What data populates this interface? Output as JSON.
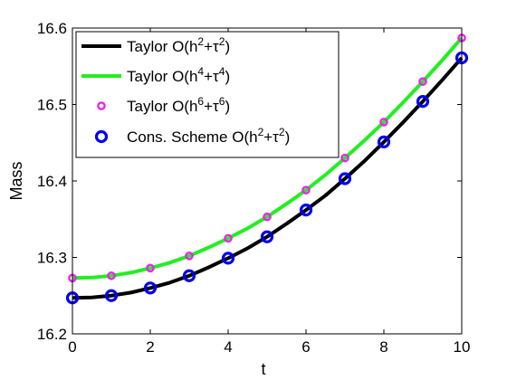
{
  "chart_data": {
    "type": "line",
    "xlabel": "t",
    "ylabel": "Mass",
    "xlim": [
      0,
      10
    ],
    "ylim": [
      16.2,
      16.6
    ],
    "xticks": [
      "0",
      "2",
      "4",
      "6",
      "8",
      "10"
    ],
    "yticks": [
      "16.2",
      "16.3",
      "16.4",
      "16.5",
      "16.6"
    ],
    "grid": false,
    "legend_position": "top-left",
    "series": [
      {
        "name": "Taylor O(h2+τ2)",
        "label_parts": {
          "prefix": "Taylor O(h",
          "sup1": "2",
          "mid": "+τ",
          "sup2": "2",
          "suffix": ")"
        },
        "style": "line",
        "color": "#000000",
        "x": [
          0,
          0.5,
          1,
          1.5,
          2,
          2.5,
          3,
          3.5,
          4,
          4.5,
          5,
          5.5,
          6,
          6.5,
          7,
          7.5,
          8,
          8.5,
          9,
          9.5,
          10
        ],
        "values": [
          16.247,
          16.2476,
          16.25,
          16.254,
          16.26,
          16.267,
          16.276,
          16.287,
          16.299,
          16.312,
          16.327,
          16.344,
          16.362,
          16.381,
          16.403,
          16.426,
          16.451,
          16.477,
          16.504,
          16.532,
          16.561
        ]
      },
      {
        "name": "Taylor O(h4+τ4)",
        "label_parts": {
          "prefix": "Taylor O(h",
          "sup1": "4",
          "mid": "+τ",
          "sup2": "4",
          "suffix": ")"
        },
        "style": "line",
        "color": "#22ee22",
        "x": [
          0,
          0.5,
          1,
          1.5,
          2,
          2.5,
          3,
          3.5,
          4,
          4.5,
          5,
          5.5,
          6,
          6.5,
          7,
          7.5,
          8,
          8.5,
          9,
          9.5,
          10
        ],
        "values": [
          16.273,
          16.2736,
          16.276,
          16.28,
          16.286,
          16.293,
          16.302,
          16.313,
          16.325,
          16.338,
          16.353,
          16.37,
          16.388,
          16.408,
          16.43,
          16.453,
          16.477,
          16.503,
          16.53,
          16.558,
          16.587
        ]
      },
      {
        "name": "Taylor O(h6+τ6)",
        "label_parts": {
          "prefix": "Taylor O(h",
          "sup1": "6",
          "mid": "+τ",
          "sup2": "6",
          "suffix": ")"
        },
        "style": "markers",
        "marker_size": "small",
        "color": "#ee22ee",
        "x": [
          0,
          1,
          2,
          3,
          4,
          5,
          6,
          7,
          8,
          9,
          10
        ],
        "values": [
          16.273,
          16.276,
          16.286,
          16.302,
          16.325,
          16.353,
          16.388,
          16.43,
          16.477,
          16.53,
          16.587
        ]
      },
      {
        "name": "Cons. Scheme O(h2+τ2)",
        "label_parts": {
          "prefix": "Cons. Scheme O(h",
          "sup1": "2",
          "mid": "+τ",
          "sup2": "2",
          "suffix": ")"
        },
        "style": "markers",
        "marker_size": "large",
        "color": "#0000ee",
        "x": [
          0,
          1,
          2,
          3,
          4,
          5,
          6,
          7,
          8,
          9,
          10
        ],
        "values": [
          16.247,
          16.25,
          16.26,
          16.276,
          16.299,
          16.327,
          16.362,
          16.403,
          16.451,
          16.504,
          16.561
        ]
      }
    ]
  }
}
